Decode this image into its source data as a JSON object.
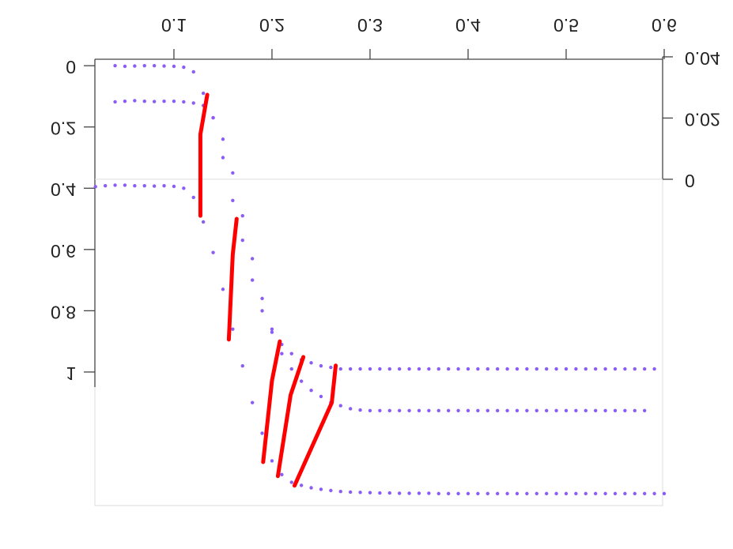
{
  "chart_data": {
    "type": "scatter",
    "xlim": [
      0.0194,
      0.5984
    ],
    "xticks": [
      0.1,
      0.2,
      0.3,
      0.4,
      0.5,
      0.6
    ],
    "ylim": [
      1.436,
      -0.034
    ],
    "yticks": [
      0,
      0.2,
      0.4,
      0.6,
      0.8,
      1
    ],
    "y2lim": [
      -0.1066,
      0.0405
    ],
    "y2ticks": [
      0,
      0.02,
      0.04
    ],
    "series": [
      {
        "color": "#8b5cf6",
        "x": [
          0.04,
          0.05,
          0.06,
          0.07,
          0.08,
          0.09,
          0.1,
          0.11,
          0.12,
          0.13,
          0.14,
          0.15,
          0.16,
          0.17,
          0.18,
          0.19,
          0.2,
          0.21,
          0.22,
          0.23,
          0.24,
          0.25,
          0.26,
          0.27,
          0.28,
          0.29,
          0.3,
          0.31,
          0.32,
          0.33,
          0.34,
          0.35,
          0.36,
          0.37,
          0.38,
          0.39,
          0.4,
          0.41,
          0.42,
          0.43,
          0.44,
          0.45,
          0.46,
          0.47,
          0.48,
          0.49,
          0.5,
          0.51,
          0.52,
          0.53,
          0.54,
          0.55,
          0.56,
          0.57,
          0.58,
          0.59
        ],
        "values": [
          0,
          0.002,
          0.001,
          0,
          0,
          0.001,
          0.002,
          0.005,
          0.02,
          0.09,
          0.17,
          0.3,
          0.44,
          0.57,
          0.7,
          0.8,
          0.87,
          0.91,
          0.94,
          0.96,
          0.97,
          0.98,
          0.985,
          0.99,
          0.99,
          0.99,
          0.99,
          0.99,
          0.99,
          0.99,
          0.99,
          0.99,
          0.99,
          0.99,
          0.99,
          0.99,
          0.99,
          0.99,
          0.99,
          0.99,
          0.99,
          0.99,
          0.99,
          0.99,
          0.99,
          0.99,
          0.99,
          0.99,
          0.99,
          0.99,
          0.99,
          0.99,
          0.99,
          0.99,
          0.99,
          0.99
        ]
      },
      {
        "color": "#8b5cf6",
        "x": [
          0.04,
          0.05,
          0.06,
          0.07,
          0.08,
          0.09,
          0.1,
          0.11,
          0.12,
          0.13,
          0.14,
          0.15,
          0.16,
          0.17,
          0.18,
          0.19,
          0.2,
          0.21,
          0.22,
          0.23,
          0.24,
          0.25,
          0.26,
          0.27,
          0.28,
          0.29,
          0.3,
          0.31,
          0.32,
          0.33,
          0.34,
          0.35,
          0.36,
          0.37,
          0.38,
          0.39,
          0.4,
          0.41,
          0.42,
          0.43,
          0.44,
          0.45,
          0.46,
          0.47,
          0.48,
          0.49,
          0.5,
          0.51,
          0.52,
          0.53,
          0.54,
          0.55,
          0.56,
          0.57,
          0.58
        ],
        "values": [
          0.118,
          0.116,
          0.114,
          0.116,
          0.117,
          0.116,
          0.116,
          0.118,
          0.122,
          0.13,
          0.17,
          0.24,
          0.35,
          0.49,
          0.63,
          0.76,
          0.86,
          0.94,
          0.99,
          1.03,
          1.06,
          1.08,
          1.1,
          1.11,
          1.12,
          1.124,
          1.126,
          1.126,
          1.126,
          1.126,
          1.126,
          1.126,
          1.126,
          1.126,
          1.126,
          1.126,
          1.126,
          1.126,
          1.126,
          1.126,
          1.126,
          1.126,
          1.126,
          1.126,
          1.126,
          1.126,
          1.126,
          1.126,
          1.126,
          1.126,
          1.126,
          1.126,
          1.126,
          1.126,
          1.126
        ]
      },
      {
        "color": "#8b5cf6",
        "x": [
          0.02,
          0.03,
          0.04,
          0.05,
          0.06,
          0.07,
          0.08,
          0.09,
          0.1,
          0.11,
          0.12,
          0.13,
          0.14,
          0.15,
          0.16,
          0.17,
          0.18,
          0.19,
          0.2,
          0.21,
          0.22,
          0.23,
          0.24,
          0.25,
          0.26,
          0.27,
          0.28,
          0.29,
          0.3,
          0.31,
          0.32,
          0.33,
          0.34,
          0.35,
          0.36,
          0.37,
          0.38,
          0.39,
          0.4,
          0.41,
          0.42,
          0.43,
          0.44,
          0.45,
          0.46,
          0.47,
          0.48,
          0.49,
          0.5,
          0.51,
          0.52,
          0.53,
          0.54,
          0.55,
          0.56,
          0.57,
          0.58,
          0.59,
          0.6
        ],
        "values": [
          0.395,
          0.392,
          0.39,
          0.39,
          0.392,
          0.392,
          0.393,
          0.392,
          0.394,
          0.4,
          0.43,
          0.51,
          0.61,
          0.73,
          0.86,
          0.98,
          1.1,
          1.2,
          1.29,
          1.335,
          1.36,
          1.37,
          1.378,
          1.383,
          1.387,
          1.39,
          1.392,
          1.393,
          1.394,
          1.395,
          1.395,
          1.396,
          1.396,
          1.396,
          1.396,
          1.397,
          1.397,
          1.397,
          1.397,
          1.397,
          1.397,
          1.397,
          1.397,
          1.397,
          1.397,
          1.397,
          1.397,
          1.397,
          1.397,
          1.397,
          1.397,
          1.397,
          1.397,
          1.397,
          1.397,
          1.397,
          1.397,
          1.397,
          1.397
        ]
      },
      {
        "type": "line",
        "color": "#ff0000",
        "x": [
          0.134,
          0.127,
          0.127
        ],
        "values": [
          0.095,
          0.224,
          0.49
        ]
      },
      {
        "type": "line",
        "color": "#ff0000",
        "x": [
          0.164,
          0.16,
          0.156
        ],
        "values": [
          0.5,
          0.616,
          0.894
        ]
      },
      {
        "type": "line",
        "color": "#ff0000",
        "x": [
          0.208,
          0.2,
          0.191
        ],
        "values": [
          0.9,
          1.028,
          1.294
        ]
      },
      {
        "type": "line",
        "color": "#ff0000",
        "x": [
          0.232,
          0.219,
          0.206
        ],
        "values": [
          0.951,
          1.075,
          1.34
        ]
      },
      {
        "type": "line",
        "color": "#ff0000",
        "x": [
          0.265,
          0.261,
          0.223
        ],
        "values": [
          0.979,
          1.1,
          1.371
        ]
      }
    ]
  }
}
